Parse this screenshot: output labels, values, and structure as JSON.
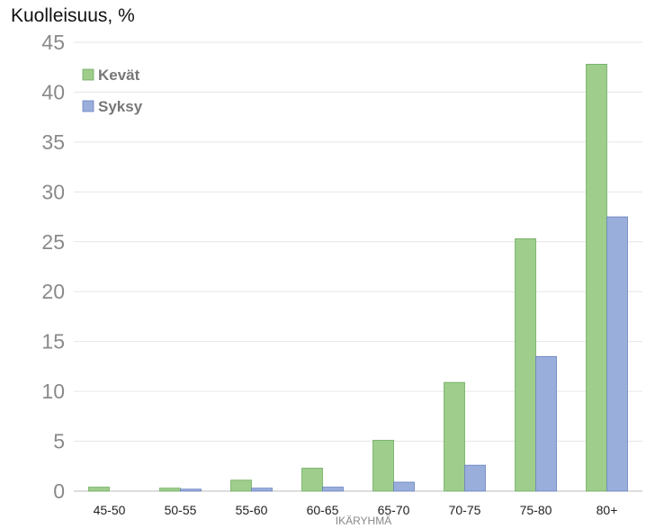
{
  "chart_data": {
    "type": "bar",
    "ylabel": "Kuolleisuus, %",
    "xlabel": "IKÄRYHMÄ",
    "categories": [
      "45-50",
      "50-55",
      "55-60",
      "60-65",
      "65-70",
      "70-75",
      "75-80",
      "80+"
    ],
    "series": [
      {
        "name": "Kevät",
        "color": "#9ecd8c",
        "values": [
          0.4,
          0.3,
          1.1,
          2.3,
          5.1,
          10.9,
          25.3,
          42.8
        ]
      },
      {
        "name": "Syksy",
        "color": "#9aaedb",
        "values": [
          0.0,
          0.2,
          0.3,
          0.4,
          0.9,
          2.6,
          13.5,
          27.5
        ]
      }
    ],
    "ylim": [
      0,
      45
    ],
    "yticks": [
      0,
      5,
      10,
      15,
      20,
      25,
      30,
      35,
      40,
      45
    ],
    "grid": true,
    "legend": "top-left"
  }
}
